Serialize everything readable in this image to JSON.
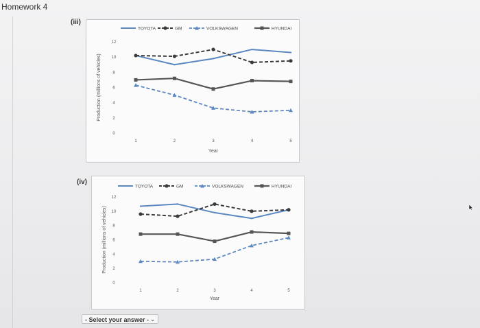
{
  "page": {
    "title": "Homework 4"
  },
  "answer_select": {
    "placeholder": "- Select your answer -",
    "chevron": "⌄"
  },
  "colors": {
    "toyota": "#5b88c0",
    "gm": "#3a3a3a",
    "volkswagen": "#5b88c0",
    "hyundai": "#555555"
  },
  "chart_data": [
    {
      "label": "(iii)",
      "type": "line",
      "xlabel": "Year",
      "ylabel": "Production (millions of vehicles)",
      "x": [
        1,
        2,
        3,
        4,
        5
      ],
      "ylim": [
        0,
        12
      ],
      "yticks": [
        0,
        2,
        4,
        6,
        8,
        10,
        12
      ],
      "legend": "top",
      "series": [
        {
          "name": "TOYOTA",
          "values": [
            10.2,
            9.0,
            9.8,
            11.0,
            10.6
          ]
        },
        {
          "name": "GM",
          "values": [
            10.2,
            10.1,
            11.0,
            9.3,
            9.5
          ]
        },
        {
          "name": "VOLKSWAGEN",
          "values": [
            6.3,
            5.0,
            3.3,
            2.8,
            3.0
          ]
        },
        {
          "name": "HYUNDAI",
          "values": [
            7.0,
            7.2,
            5.8,
            6.9,
            6.8
          ]
        }
      ]
    },
    {
      "label": "(iv)",
      "type": "line",
      "xlabel": "Year",
      "ylabel": "Production (millions of vehicles)",
      "x": [
        1,
        2,
        3,
        4,
        5
      ],
      "ylim": [
        0,
        12
      ],
      "yticks": [
        0,
        2,
        4,
        6,
        8,
        10,
        12
      ],
      "legend": "top",
      "series": [
        {
          "name": "TOYOTA",
          "values": [
            10.7,
            11.0,
            9.8,
            9.0,
            10.2
          ]
        },
        {
          "name": "GM",
          "values": [
            9.6,
            9.3,
            11.0,
            10.0,
            10.2
          ]
        },
        {
          "name": "VOLKSWAGEN",
          "values": [
            3.0,
            2.9,
            3.3,
            5.2,
            6.3
          ]
        },
        {
          "name": "HYUNDAI",
          "values": [
            6.8,
            6.8,
            5.8,
            7.1,
            6.9
          ]
        }
      ]
    }
  ]
}
